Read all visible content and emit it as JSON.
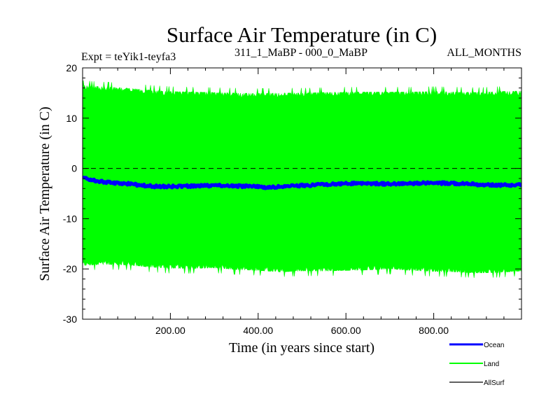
{
  "chart_data": {
    "type": "line",
    "title": "Surface Air Temperature (in C)",
    "subtitle_left": "Expt = teYik1-teyfa3",
    "subtitle_center": "311_1_MaBP - 000_0_MaBP",
    "subtitle_right": "ALL_MONTHS",
    "xlabel": "Time (in years since start)",
    "ylabel": "Surface Air Temperature (in C)",
    "xlim": [
      0,
      1000
    ],
    "ylim": [
      -30,
      20
    ],
    "x_ticks": [
      200,
      400,
      600,
      800
    ],
    "x_tick_labels": [
      "200.00",
      "400.00",
      "600.00",
      "800.00"
    ],
    "y_ticks": [
      -30,
      -20,
      -10,
      0,
      10,
      20
    ],
    "y_tick_labels": [
      "-30",
      "-20",
      "-10",
      "0",
      "10",
      "20"
    ],
    "reference_line": 0,
    "series": [
      {
        "name": "Land",
        "color": "#00ff00",
        "band": true,
        "x": [
          0,
          50,
          100,
          150,
          200,
          250,
          300,
          350,
          400,
          450,
          500,
          550,
          600,
          650,
          700,
          750,
          800,
          850,
          900,
          950,
          1000
        ],
        "upper": [
          16.5,
          16.2,
          16.0,
          15.6,
          15.3,
          15.2,
          15.1,
          15.0,
          14.9,
          15.0,
          15.0,
          15.1,
          15.2,
          15.2,
          15.2,
          15.2,
          15.3,
          15.2,
          15.1,
          15.3,
          15.4
        ],
        "lower": [
          -19.3,
          -19.1,
          -19.2,
          -19.6,
          -19.9,
          -19.9,
          -19.8,
          -20.1,
          -20.3,
          -20.6,
          -20.4,
          -20.4,
          -20.3,
          -20.2,
          -20.0,
          -20.3,
          -20.5,
          -20.6,
          -20.8,
          -20.7,
          -20.4
        ]
      },
      {
        "name": "Ocean",
        "color": "#0000ff",
        "x": [
          0,
          25,
          50,
          75,
          100,
          125,
          150,
          175,
          200,
          250,
          300,
          350,
          400,
          425,
          450,
          500,
          550,
          600,
          650,
          700,
          750,
          800,
          850,
          900,
          950,
          1000
        ],
        "values": [
          -1.8,
          -2.4,
          -2.7,
          -2.9,
          -3.0,
          -3.3,
          -3.5,
          -3.6,
          -3.6,
          -3.5,
          -3.4,
          -3.5,
          -3.6,
          -3.8,
          -3.6,
          -3.4,
          -3.2,
          -3.0,
          -3.0,
          -3.1,
          -3.0,
          -2.9,
          -3.0,
          -3.2,
          -3.3,
          -3.3
        ]
      },
      {
        "name": "AllSurf",
        "color": "#000000",
        "x": [],
        "values": []
      }
    ],
    "legend_position": "bottom-right"
  }
}
